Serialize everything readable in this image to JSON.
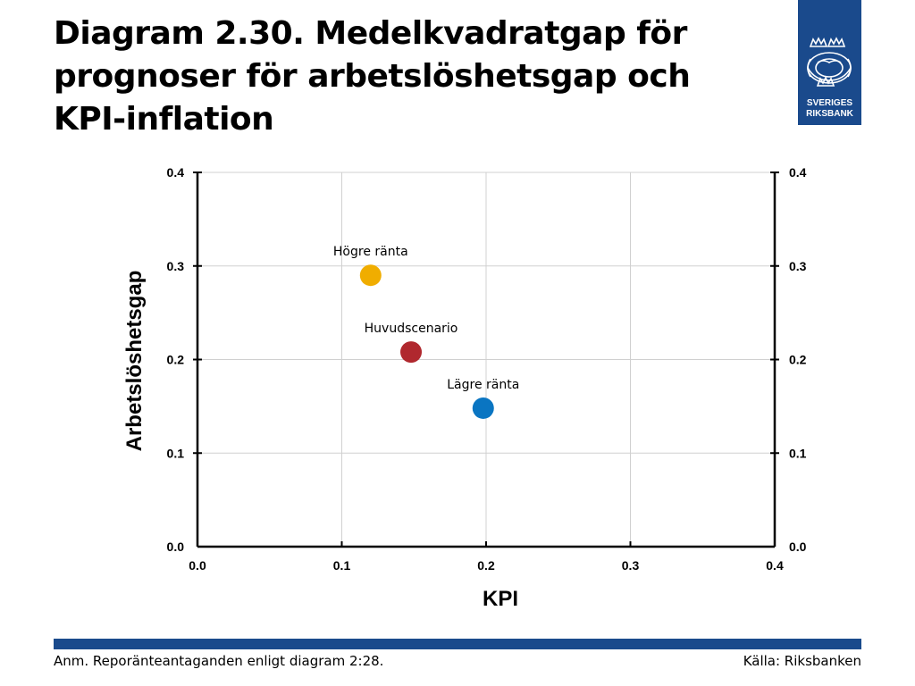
{
  "title": "Diagram 2.30. Medelkvadratgap för prognoser för arbetslöshetsgap och KPI-inflation",
  "logo": {
    "line1": "SVERIGES",
    "line2": "RIKSBANK",
    "color": "#1a4a8c"
  },
  "note": "Anm. Reporänteantaganden enligt diagram 2:28.",
  "source": "Källa: Riksbanken",
  "colors": {
    "brand": "#1a4a8c",
    "grid": "#d0d0d0"
  },
  "chart_data": {
    "type": "scatter",
    "xlabel": "KPI",
    "ylabel": "Arbetslöshetsgap",
    "xlim": [
      0.0,
      0.4
    ],
    "ylim": [
      0.0,
      0.4
    ],
    "x_ticks": [
      "0.0",
      "0.1",
      "0.2",
      "0.3",
      "0.4"
    ],
    "y_ticks": [
      "0.0",
      "0.1",
      "0.2",
      "0.3",
      "0.4"
    ],
    "grid": true,
    "points": [
      {
        "label": "Högre ränta",
        "x": 0.12,
        "y": 0.29,
        "color": "#f0ad00"
      },
      {
        "label": "Huvudscenario",
        "x": 0.148,
        "y": 0.208,
        "color": "#b0282e"
      },
      {
        "label": "Lägre ränta",
        "x": 0.198,
        "y": 0.148,
        "color": "#0a75c2"
      }
    ]
  }
}
